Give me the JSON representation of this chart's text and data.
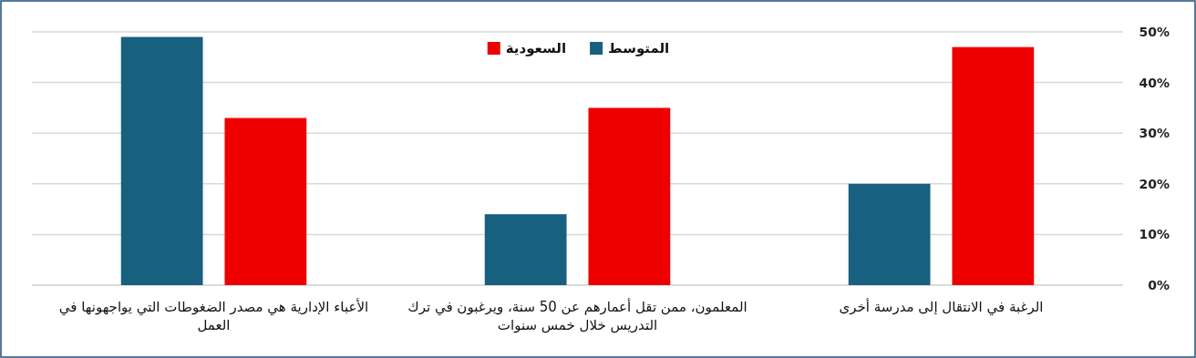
{
  "chart_data": {
    "type": "bar",
    "categories": [
      "الأعباء الإدارية هي مصدر الضغوطات التي يواجهونها في العمل",
      "المعلمون، ممن تقل أعمارهم عن 50 سنة، ويرغبون في ترك التدريس خلال خمس سنوات",
      "الرغبة في الانتقال إلى مدرسة أخرى"
    ],
    "series": [
      {
        "name": "المتوسط",
        "color": "#17607f",
        "values": [
          49,
          14,
          20
        ]
      },
      {
        "name": "السعودية",
        "color": "#ee0000",
        "values": [
          33,
          35,
          47
        ]
      }
    ],
    "ylim": [
      0,
      50
    ],
    "yticks": [
      {
        "value": 0,
        "label": "0%"
      },
      {
        "value": 10,
        "label": "10%"
      },
      {
        "value": 20,
        "label": "20%"
      },
      {
        "value": 30,
        "label": "30%"
      },
      {
        "value": 40,
        "label": "40%"
      },
      {
        "value": 50,
        "label": "50%"
      }
    ],
    "grid": "y",
    "legend": "top"
  }
}
